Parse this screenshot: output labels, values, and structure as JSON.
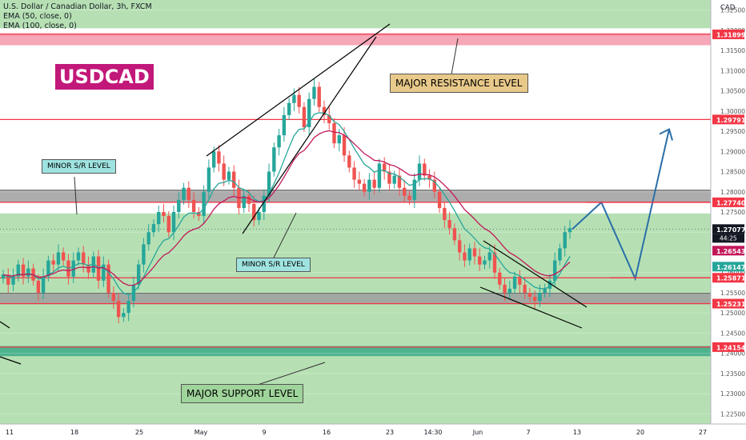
{
  "header": {
    "symbol_line": "U.S. Dollar / Canadian Dollar, 3h, FXCM",
    "ema50_label": "EMA (50, close, 0)",
    "ema100_label": "EMA (100, close, 0)",
    "currency": "CAD",
    "badge": "USDCAD"
  },
  "annotations": {
    "major_resistance": "MAJOR RESISTANCE LEVEL",
    "minor_sr_1": "MINOR S/R LEVEL",
    "minor_sr_2": "MINOR S/R LEVEL",
    "major_support": "MAJOR SUPPORT LEVEL"
  },
  "colors": {
    "up": "#26a69a",
    "down": "#ef5350",
    "ema50": "#26a69a",
    "ema100": "#c2185b",
    "level_line": "#f23645",
    "green_zone": "#b6e0b3",
    "teal_zone": "#4cb38e",
    "grey_zone": "#9e9e9e",
    "projection": "#2a6fa8"
  },
  "chart_data": {
    "type": "candlestick",
    "yrange": [
      1.2225,
      1.3275
    ],
    "price_ticks": [
      "1.32500",
      "1.32000",
      "1.31500",
      "1.31000",
      "1.30500",
      "1.30000",
      "1.29500",
      "1.29000",
      "1.28500",
      "1.28000",
      "1.27500",
      "1.27000",
      "1.26500",
      "1.26000",
      "1.25500",
      "1.25000",
      "1.24500",
      "1.24000",
      "1.23500",
      "1.23000",
      "1.22500"
    ],
    "date_ticks": [
      "11",
      "18",
      "25",
      "May",
      "9",
      "16",
      "23",
      "14:30",
      "Jun",
      "7",
      "13",
      "20",
      "27"
    ],
    "levels": [
      {
        "label": "1.31899",
        "value": 1.31899
      },
      {
        "label": "1.29791",
        "value": 1.29791
      },
      {
        "label": "1.27740",
        "value": 1.2774
      },
      {
        "label": "1.25871",
        "value": 1.25871
      },
      {
        "label": "1.25231",
        "value": 1.25231
      },
      {
        "label": "1.24154",
        "value": 1.24154
      }
    ],
    "current_price": {
      "label": "1.27077",
      "countdown": "44:25",
      "value": 1.27077
    },
    "ema_labels": [
      {
        "label": "1.26543",
        "value": 1.26543
      },
      {
        "label": "1.26147",
        "value": 1.26147
      }
    ],
    "zones": [
      {
        "from": 1.2225,
        "to": 1.27465,
        "kind": "green"
      },
      {
        "from": 1.3205,
        "to": 1.3275,
        "kind": "green"
      },
      {
        "from": 1.2773,
        "to": 1.2804,
        "kind": "grey"
      },
      {
        "from": 1.2523,
        "to": 1.2549,
        "kind": "grey"
      },
      {
        "from": 1.2393,
        "to": 1.2418,
        "kind": "teal"
      },
      {
        "from": 1.3163,
        "to": 1.3193,
        "kind": "pink"
      }
    ],
    "price_path": [
      1.2595,
      1.257,
      1.259,
      1.262,
      1.259,
      1.261,
      1.258,
      1.255,
      1.259,
      1.263,
      1.262,
      1.265,
      1.263,
      1.259,
      1.263,
      1.265,
      1.262,
      1.26,
      1.264,
      1.258,
      1.262,
      1.255,
      1.253,
      1.249,
      1.25,
      1.253,
      1.257,
      1.262,
      1.267,
      1.27,
      1.272,
      1.275,
      1.274,
      1.27,
      1.275,
      1.278,
      1.281,
      1.278,
      1.275,
      1.274,
      1.28,
      1.286,
      1.29,
      1.287,
      1.283,
      1.285,
      1.281,
      1.276,
      1.279,
      1.277,
      1.273,
      1.275,
      1.279,
      1.285,
      1.291,
      1.294,
      1.299,
      1.302,
      1.304,
      1.301,
      1.296,
      1.303,
      1.306,
      1.301,
      1.299,
      1.297,
      1.292,
      1.294,
      1.289,
      1.286,
      1.283,
      1.282,
      1.28,
      1.283,
      1.281,
      1.287,
      1.285,
      1.282,
      1.284,
      1.281,
      1.279,
      1.278,
      1.283,
      1.287,
      1.284,
      1.283,
      1.28,
      1.276,
      1.273,
      1.271,
      1.268,
      1.265,
      1.263,
      1.266,
      1.264,
      1.262,
      1.263,
      1.265,
      1.26,
      1.257,
      1.255,
      1.256,
      1.259,
      1.257,
      1.255,
      1.254,
      1.253,
      1.255,
      1.256,
      1.258,
      1.263,
      1.266,
      1.27,
      1.271
    ],
    "projection": [
      [
        0.0,
        1.27077
      ],
      [
        0.3,
        1.2774
      ],
      [
        0.65,
        1.2585
      ],
      [
        1.0,
        1.2955
      ]
    ]
  }
}
